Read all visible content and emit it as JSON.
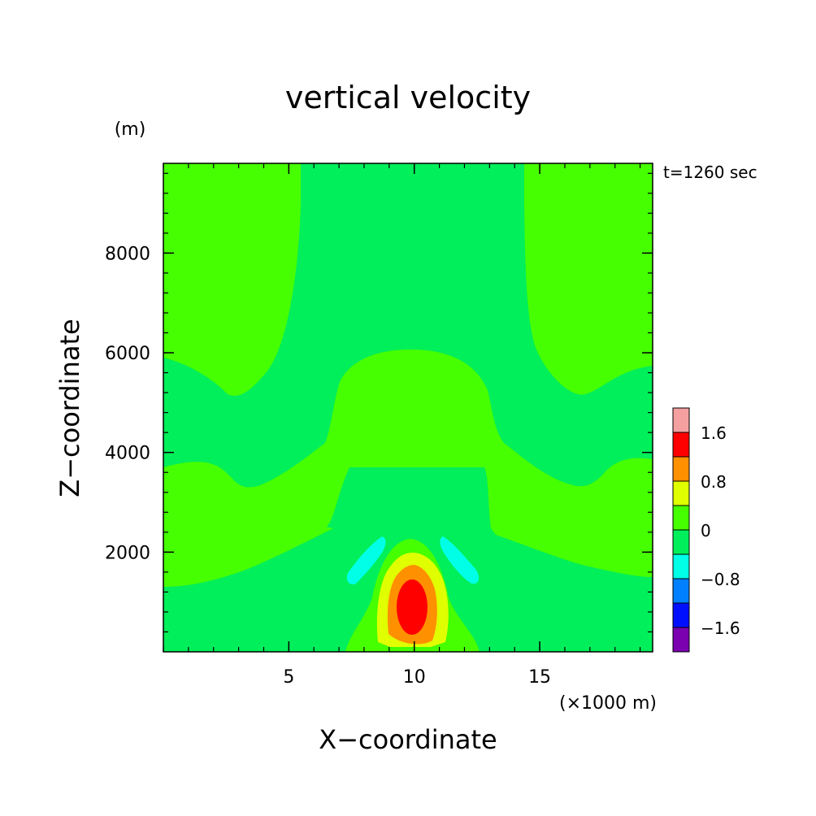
{
  "chart_data": {
    "type": "heatmap",
    "title": "vertical velocity",
    "xlabel": "X−coordinate",
    "ylabel": "Z−coordinate",
    "x_unit": "(×1000 m)",
    "y_unit": "(m)",
    "annotation": "t=1260 sec",
    "xlim": [
      0,
      19.5
    ],
    "ylim": [
      0,
      9800
    ],
    "x_ticks": [
      5,
      10,
      15
    ],
    "y_ticks": [
      2000,
      4000,
      6000,
      8000
    ],
    "x_minor_step": 1,
    "y_minor_step": 400,
    "grid": false,
    "colorbar": {
      "placement": "right",
      "levels": [
        {
          "from": 2.0,
          "to": 2.4,
          "color": "#f4a0a0"
        },
        {
          "from": 1.6,
          "to": 2.0,
          "color": "#ff0000"
        },
        {
          "from": 1.2,
          "to": 1.6,
          "color": "#ff9000"
        },
        {
          "from": 0.8,
          "to": 1.2,
          "color": "#e0ff00"
        },
        {
          "from": 0.4,
          "to": 0.8,
          "color": "#46ff00"
        },
        {
          "from": 0.0,
          "to": 0.4,
          "color": "#00ef5a"
        },
        {
          "from": -0.4,
          "to": 0.0,
          "color": "#00ffe6"
        },
        {
          "from": -0.8,
          "to": -0.4,
          "color": "#0080ff"
        },
        {
          "from": -1.2,
          "to": -0.8,
          "color": "#0010ff"
        },
        {
          "from": -1.6,
          "to": -1.2,
          "color": "#7a00b0"
        }
      ],
      "tick_labels": [
        "1.6",
        "0.8",
        "0",
        "−0.8",
        "−1.6"
      ]
    },
    "field_description": "updraft core (max ~2 m/s) near x=10 km, z≈900 m; weak downdraft lobes at x≈8.5 and 11.8 km, z≈2000 m"
  }
}
